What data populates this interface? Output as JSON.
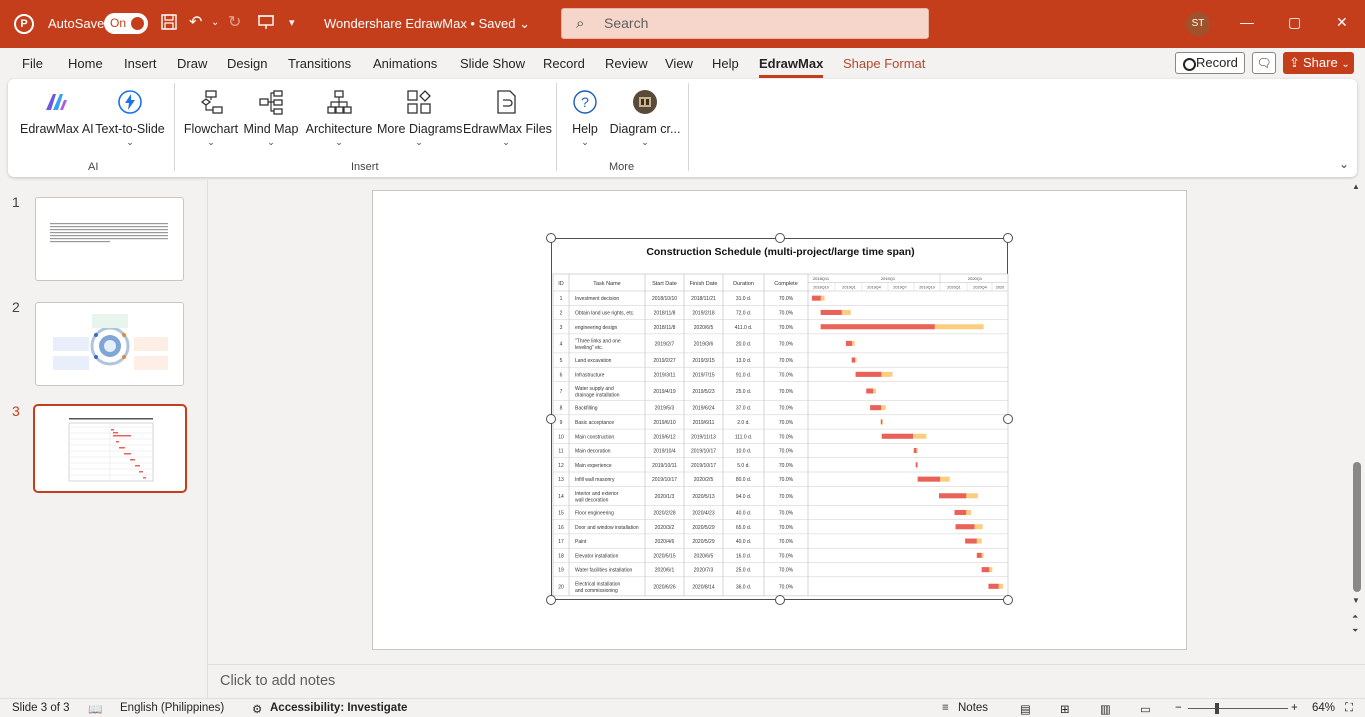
{
  "titlebar": {
    "logo": "P",
    "autosave_label": "AutoSave",
    "autosave_state": "On",
    "doc_title": "Wondershare EdrawMax • Saved",
    "search_placeholder": "Search",
    "user_initials": "ST",
    "accent_color": "#c43e1c"
  },
  "tabs": [
    "File",
    "Home",
    "Insert",
    "Draw",
    "Design",
    "Transitions",
    "Animations",
    "Slide Show",
    "Record",
    "Review",
    "View",
    "Help",
    "EdrawMax",
    "Shape Format"
  ],
  "active_tab": "EdrawMax",
  "actions": {
    "record": "Record",
    "share": "Share"
  },
  "ribbon": {
    "buttons": [
      {
        "label": "EdrawMax AI",
        "icon": "edrawmax-ai-icon"
      },
      {
        "label": "Text-to-Slide",
        "icon": "lightning-icon"
      },
      {
        "label": "Flowchart",
        "icon": "flowchart-icon"
      },
      {
        "label": "Mind Map",
        "icon": "mindmap-icon"
      },
      {
        "label": "Architecture",
        "icon": "architecture-icon"
      },
      {
        "label": "More Diagrams",
        "icon": "more-diagrams-icon"
      },
      {
        "label": "EdrawMax Files",
        "icon": "edrawmax-files-icon"
      },
      {
        "label": "Help",
        "icon": "help-icon"
      },
      {
        "label": "Diagram cr...",
        "icon": "diagram-creator-icon"
      }
    ],
    "groups": [
      "AI",
      "Insert",
      "More"
    ]
  },
  "slides": [
    {
      "number": "1"
    },
    {
      "number": "2"
    },
    {
      "number": "3",
      "active": true
    }
  ],
  "gantt": {
    "title": "Construction Schedule (multi-project/large time span)",
    "columns": [
      "ID",
      "Task Name",
      "Start Date",
      "Finish Date",
      "Duration",
      "Complete"
    ],
    "timeline_top": [
      "2018Q11",
      "2019Q1",
      "2020Q1"
    ],
    "timeline_bottom": [
      "2018Q10",
      "2019Q1",
      "2019Q4",
      "2019Q7",
      "2019Q10",
      "2020Q1",
      "2020Q4",
      "2020"
    ],
    "rows": [
      {
        "id": "1",
        "name": "Investment decision",
        "start": "2018/10/10",
        "finish": "2018/11/21",
        "duration": "31.0 d.",
        "complete": "70.0%",
        "bar_start": 0.01,
        "bar_len": 0.065
      },
      {
        "id": "2",
        "name": "Obtain land use rights, etc.",
        "start": "2018/11/8",
        "finish": "2019/2/18",
        "duration": "72.0 d.",
        "complete": "70.0%",
        "bar_start": 0.055,
        "bar_len": 0.155
      },
      {
        "id": "3",
        "name": "engineering design",
        "start": "2018/11/8",
        "finish": "2020/6/5",
        "duration": "411.0 d.",
        "complete": "70.0%",
        "bar_start": 0.055,
        "bar_len": 0.84
      },
      {
        "id": "4",
        "name": "\"Three links and one leveling\" etc.",
        "start": "2019/2/7",
        "finish": "2019/3/6",
        "duration": "20.0 d.",
        "complete": "70.0%",
        "bar_start": 0.185,
        "bar_len": 0.045
      },
      {
        "id": "5",
        "name": "Land excavation",
        "start": "2019/2/27",
        "finish": "2019/3/15",
        "duration": "13.0 d.",
        "complete": "70.0%",
        "bar_start": 0.215,
        "bar_len": 0.025
      },
      {
        "id": "6",
        "name": "Infrastructure",
        "start": "2019/3/11",
        "finish": "2019/7/15",
        "duration": "91.0 d.",
        "complete": "70.0%",
        "bar_start": 0.235,
        "bar_len": 0.19
      },
      {
        "id": "7",
        "name": "Water supply and drainage installation",
        "start": "2019/4/19",
        "finish": "2019/5/23",
        "duration": "25.0 d.",
        "complete": "70.0%",
        "bar_start": 0.29,
        "bar_len": 0.05
      },
      {
        "id": "8",
        "name": "Backfilling",
        "start": "2019/5/3",
        "finish": "2019/6/24",
        "duration": "37.0 d.",
        "complete": "70.0%",
        "bar_start": 0.31,
        "bar_len": 0.08
      },
      {
        "id": "9",
        "name": "Basic acceptance",
        "start": "2019/6/10",
        "finish": "2019/6/11",
        "duration": "2.0 d.",
        "complete": "70.0%",
        "bar_start": 0.365,
        "bar_len": 0.008
      },
      {
        "id": "10",
        "name": "Main construction",
        "start": "2019/6/12",
        "finish": "2019/11/13",
        "duration": "111.0 d.",
        "complete": "70.0%",
        "bar_start": 0.37,
        "bar_len": 0.23
      },
      {
        "id": "11",
        "name": "Main decoration",
        "start": "2019/10/4",
        "finish": "2019/10/17",
        "duration": "10.0 d.",
        "complete": "70.0%",
        "bar_start": 0.535,
        "bar_len": 0.02
      },
      {
        "id": "12",
        "name": "Main experience",
        "start": "2019/10/11",
        "finish": "2019/10/17",
        "duration": "5.0 d.",
        "complete": "70.0%",
        "bar_start": 0.545,
        "bar_len": 0.012
      },
      {
        "id": "13",
        "name": "Infill wall masonry",
        "start": "2019/10/17",
        "finish": "2020/2/5",
        "duration": "80.0 d.",
        "complete": "70.0%",
        "bar_start": 0.555,
        "bar_len": 0.165
      },
      {
        "id": "14",
        "name": "Interior and exterior wall decoration",
        "start": "2020/1/3",
        "finish": "2020/5/13",
        "duration": "94.0 d.",
        "complete": "70.0%",
        "bar_start": 0.665,
        "bar_len": 0.2
      },
      {
        "id": "15",
        "name": "Floor engineering",
        "start": "2020/2/28",
        "finish": "2020/4/23",
        "duration": "40.0 d.",
        "complete": "70.0%",
        "bar_start": 0.745,
        "bar_len": 0.085
      },
      {
        "id": "16",
        "name": "Door and window installation",
        "start": "2020/3/2",
        "finish": "2020/5/29",
        "duration": "65.0 d.",
        "complete": "70.0%",
        "bar_start": 0.75,
        "bar_len": 0.14
      },
      {
        "id": "17",
        "name": "Paint",
        "start": "2020/4/6",
        "finish": "2020/5/29",
        "duration": "40.0 d.",
        "complete": "70.0%",
        "bar_start": 0.8,
        "bar_len": 0.085
      },
      {
        "id": "18",
        "name": "Elevator installation",
        "start": "2020/5/15",
        "finish": "2020/6/5",
        "duration": "16.0 d.",
        "complete": "70.0%",
        "bar_start": 0.86,
        "bar_len": 0.035
      },
      {
        "id": "19",
        "name": "Water facilities installation",
        "start": "2020/6/1",
        "finish": "2020/7/3",
        "duration": "25.0 d.",
        "complete": "70.0%",
        "bar_start": 0.885,
        "bar_len": 0.055
      },
      {
        "id": "20",
        "name": "Electrical installation and commissioning",
        "start": "2020/6/26",
        "finish": "2020/8/14",
        "duration": "36.0 d.",
        "complete": "70.0%",
        "bar_start": 0.92,
        "bar_len": 0.075
      }
    ]
  },
  "notes_placeholder": "Click to add notes",
  "statusbar": {
    "slide_info": "Slide 3 of 3",
    "language": "English (Philippines)",
    "accessibility": "Accessibility: Investigate",
    "notes": "Notes",
    "zoom": "64%"
  }
}
